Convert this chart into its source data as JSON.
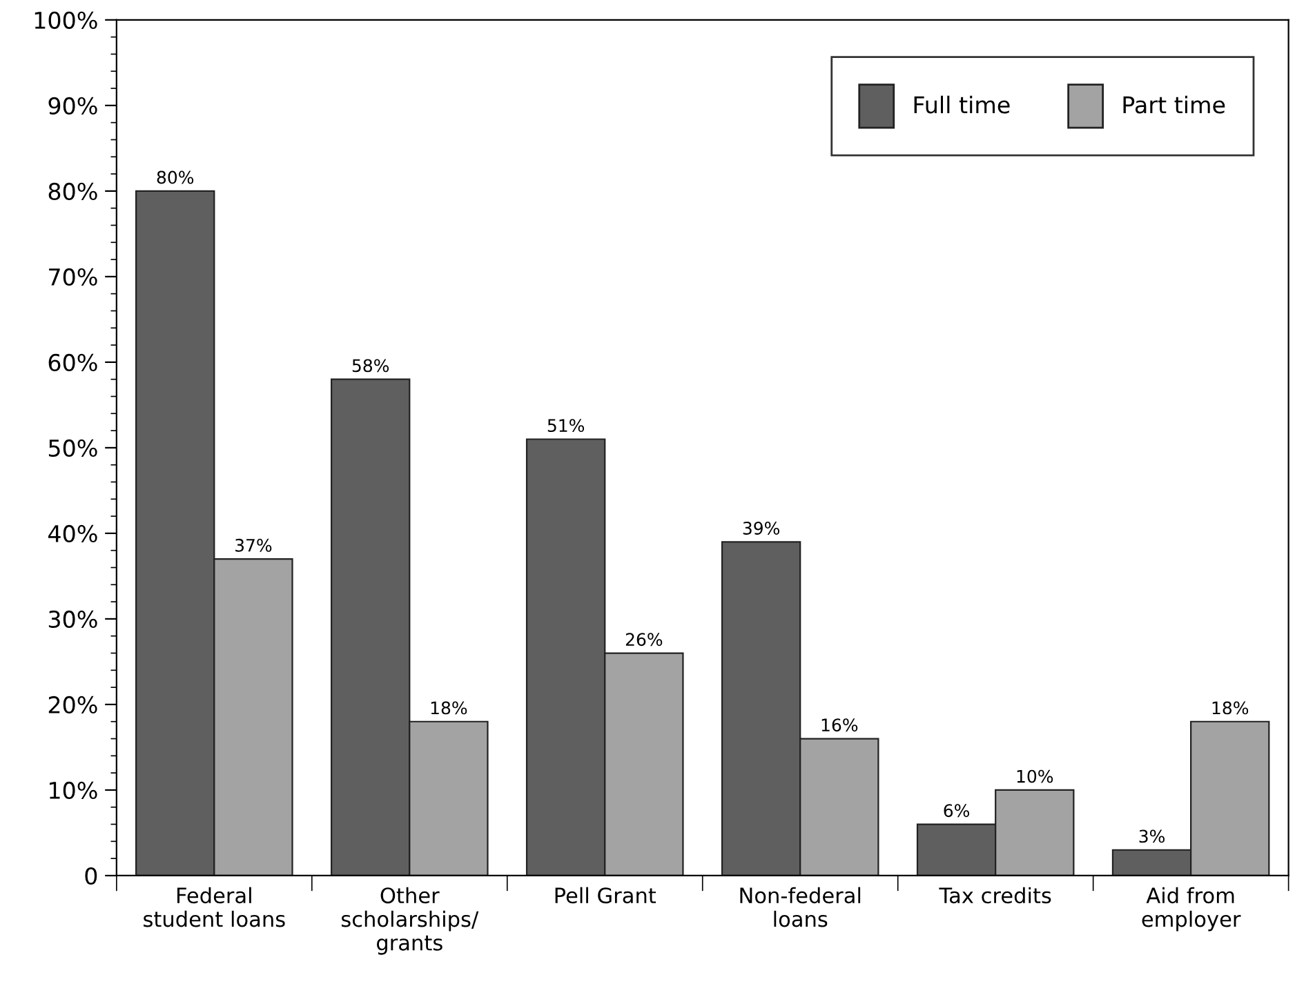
{
  "chart_data": {
    "type": "bar",
    "categories": [
      "Federal\nstudent loans",
      "Other\nscholarships/\ngrants",
      "Pell Grant",
      "Non-federal\nloans",
      "Tax credits",
      "Aid from\nemployer"
    ],
    "series": [
      {
        "name": "Full time",
        "color": "#5f5f5f",
        "values": [
          80,
          58,
          51,
          39,
          6,
          3
        ],
        "value_labels": [
          "80%",
          "58%",
          "51%",
          "39%",
          "6%",
          "3%"
        ]
      },
      {
        "name": "Part time",
        "color": "#a3a3a3",
        "values": [
          37,
          18,
          26,
          16,
          10,
          18
        ],
        "value_labels": [
          "37%",
          "18%",
          "26%",
          "16%",
          "10%",
          "18%"
        ]
      }
    ],
    "ylim": [
      0,
      100
    ],
    "yticks": [
      {
        "value": 0,
        "label": "0"
      },
      {
        "value": 10,
        "label": "10%"
      },
      {
        "value": 20,
        "label": "20%"
      },
      {
        "value": 30,
        "label": "30%"
      },
      {
        "value": 40,
        "label": "40%"
      },
      {
        "value": 50,
        "label": "50%"
      },
      {
        "value": 60,
        "label": "60%"
      },
      {
        "value": 70,
        "label": "70%"
      },
      {
        "value": 80,
        "label": "80%"
      },
      {
        "value": 90,
        "label": "90%"
      },
      {
        "value": 100,
        "label": "100%"
      }
    ],
    "grid": false,
    "legend": "top right"
  }
}
